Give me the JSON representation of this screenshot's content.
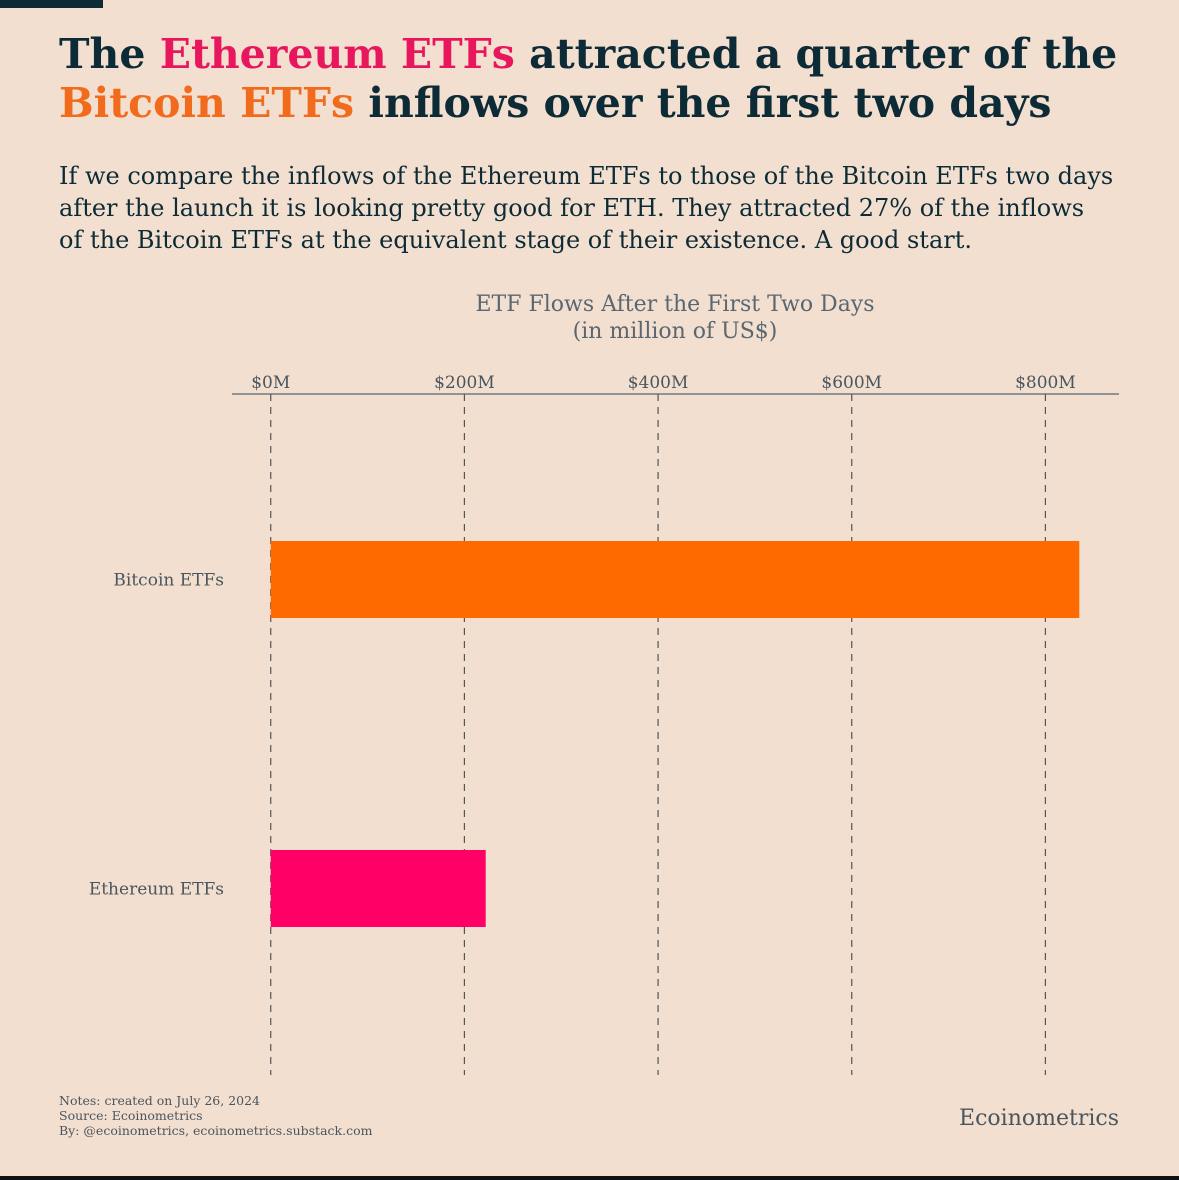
{
  "chart_data": {
    "type": "hbar",
    "title": [
      [
        {
          "text": "The "
        },
        {
          "text": "Ethereum ETFs",
          "color": "#e8175d"
        },
        {
          "text": " attracted a quarter of the"
        }
      ],
      [
        {
          "text": "Bitcoin ETFs",
          "color": "#f26b1d"
        },
        {
          "text": " inflows over the first two days"
        }
      ]
    ],
    "subtitle": [
      "If we compare the inflows of the Ethereum ETFs to those of the Bitcoin ETFs two days",
      "after the launch it is looking pretty good for ETH. They attracted 27% of the inflows",
      "of the Bitcoin ETFs at the equivalent stage of their existence. A good start."
    ],
    "chart_title": [
      "ETF Flows After the First Two Days",
      "(in million of US$)"
    ],
    "categories": [
      "Bitcoin ETFs",
      "Ethereum ETFs"
    ],
    "values": [
      835,
      222
    ],
    "colors": [
      "#ff6a00",
      "#ff0066"
    ],
    "xlim": [
      -40,
      876
    ],
    "xticks": [
      {
        "value": 0,
        "label": "$0M"
      },
      {
        "value": 200,
        "label": "$200M"
      },
      {
        "value": 400,
        "label": "$400M"
      },
      {
        "value": 600,
        "label": "$600M"
      },
      {
        "value": 800,
        "label": "$800M"
      }
    ],
    "grid": true,
    "notes": [
      "Notes: created on July 26, 2024",
      "Source: Ecoinometrics",
      "By: @ecoinometrics, ecoinometrics.substack.com"
    ],
    "brand": "Ecoinometrics"
  }
}
